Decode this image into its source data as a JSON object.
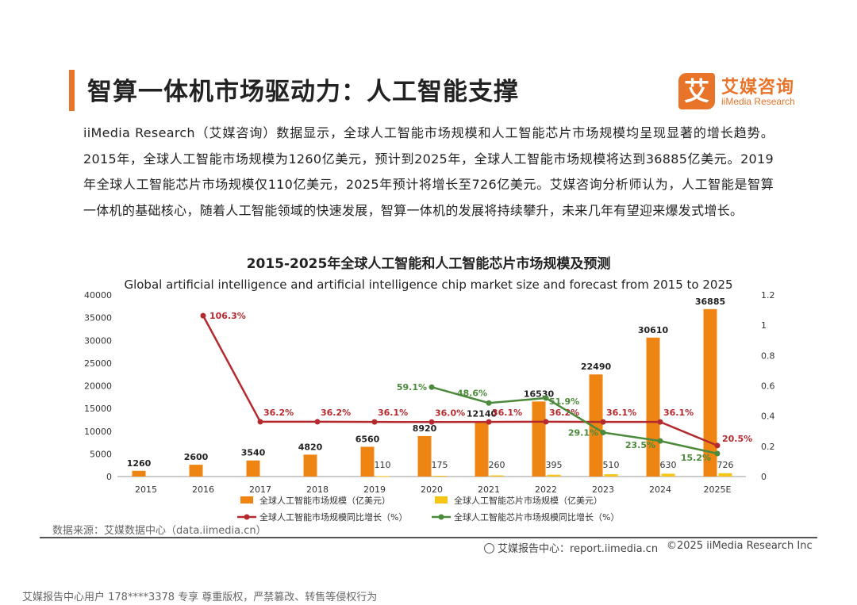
{
  "header": {
    "title": "智算一体机市场驱动力：人工智能支撑",
    "logo_mark": "艾",
    "logo_cn": "艾媒咨询",
    "logo_en": "iiMedia Research"
  },
  "intro": "iiMedia Research（艾媒咨询）数据显示，全球人工智能市场规模和人工智能芯片市场规模均呈现显著的增长趋势。2015年，全球人工智能市场规模为1260亿美元，预计到2025年，全球人工智能市场规模将达到36885亿美元。2019年全球人工智能芯片市场规模仅110亿美元，2025年预计将增长至726亿美元。艾媒咨询分析师认为，人工智能是智算一体机的基础核心，随着人工智能领域的快速发展，智算一体机的发展将持续攀升，未来几年有望迎来爆发式增长。",
  "chart_data": {
    "type": "bar",
    "title": "2015-2025年全球人工智能和人工智能芯片市场规模及预测",
    "subtitle": "Global artificial intelligence and artificial intelligence chip market size and forecast from 2015 to 2025",
    "categories": [
      "2015",
      "2016",
      "2017",
      "2018",
      "2019",
      "2020",
      "2021",
      "2022",
      "2023",
      "2024",
      "2025E"
    ],
    "y_left": {
      "min": 0,
      "max": 40000,
      "ticks": [
        0,
        5000,
        10000,
        15000,
        20000,
        25000,
        30000,
        35000,
        40000
      ]
    },
    "y_right": {
      "min": 0,
      "max": 1.2,
      "ticks": [
        "0",
        "0.2",
        "0.4",
        "0.6",
        "0.8",
        "1",
        "1.2"
      ]
    },
    "series": [
      {
        "name": "全球人工智能市场规模（亿美元）",
        "kind": "bar",
        "axis": "left",
        "color": "#ee8512",
        "values": [
          1260,
          2600,
          3540,
          4820,
          6560,
          8920,
          12140,
          16530,
          22490,
          30610,
          36885
        ],
        "labels": [
          "1260",
          "2600",
          "3540",
          "4820",
          "6560",
          "8920",
          "12140",
          "16530",
          "22490",
          "30610",
          "36885"
        ]
      },
      {
        "name": "全球人工智能芯片市场规模（亿美元）",
        "kind": "bar",
        "axis": "left",
        "color": "#f5c518",
        "values": [
          null,
          null,
          null,
          null,
          110,
          175,
          260,
          395,
          510,
          630,
          726
        ],
        "labels": [
          null,
          null,
          null,
          null,
          "110",
          "175",
          "260",
          "395",
          "510",
          "630",
          "726"
        ]
      },
      {
        "name": "全球人工智能市场规模同比增长（%）",
        "kind": "line",
        "axis": "right",
        "color": "#b52a2e",
        "values": [
          null,
          1.063,
          0.362,
          0.362,
          0.361,
          0.36,
          0.361,
          0.362,
          0.361,
          0.361,
          0.205
        ],
        "labels": [
          null,
          "106.3%",
          "36.2%",
          "36.2%",
          "36.1%",
          "36.0%",
          "36.1%",
          "36.2%",
          "36.1%",
          "36.1%",
          "20.5%"
        ]
      },
      {
        "name": "全球人工智能芯片市场规模同比增长（%）",
        "kind": "line",
        "axis": "right",
        "color": "#4b8a3b",
        "values": [
          null,
          null,
          null,
          null,
          null,
          0.591,
          0.486,
          0.519,
          0.291,
          0.235,
          0.152
        ],
        "labels": [
          null,
          null,
          null,
          null,
          null,
          "59.1%",
          "48.6%",
          "51.9%",
          "29.1%",
          "23.5%",
          "15.2%"
        ]
      }
    ]
  },
  "footer": {
    "source": "数据来源：艾媒数据中心（data.iimedia.cn）",
    "report_center": "艾媒报告中心：report.iimedia.cn",
    "copyright": "©2025  iiMedia Research  Inc",
    "watermark": "艾媒报告中心用户 178****3378 专享 尊重版权，严禁篡改、转售等侵权行为"
  }
}
